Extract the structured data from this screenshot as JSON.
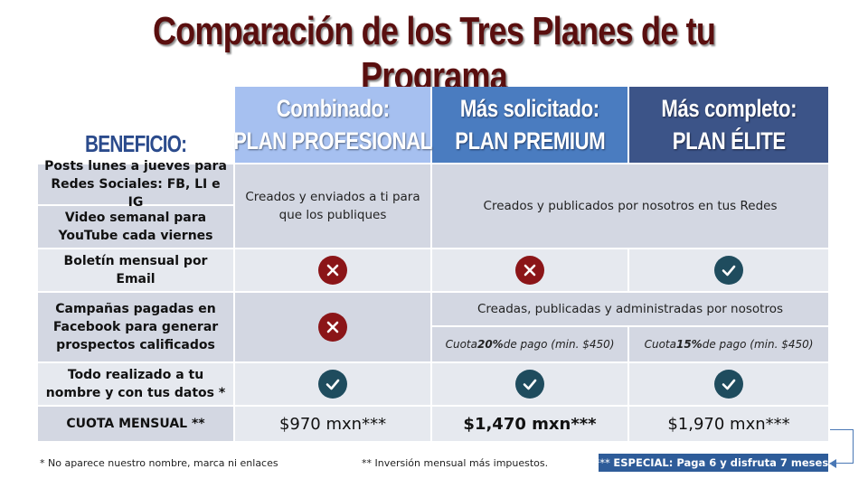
{
  "title": "Comparación de los Tres Planes de tu Programa",
  "header": {
    "corner": "BENEFICIO:",
    "plans": [
      {
        "line1": "Combinado:",
        "line2": "PLAN PROFESIONAL"
      },
      {
        "line1": "Más solicitado:",
        "line2": "PLAN PREMIUM"
      },
      {
        "line1": "Más completo:",
        "line2": "PLAN ÉLITE"
      }
    ]
  },
  "rows": {
    "posts": "Posts lunes a jueves para Redes Sociales: FB, LI e IG",
    "video": "Video semanal para YouTube cada viernes",
    "social_profesional": "Creados y enviados a ti para que los publiques",
    "social_premium_elite": "Creados y publicados por nosotros en tus Redes",
    "boletin": "Boletín mensual por Email",
    "campanas": "Campañas pagadas en Facebook para generar prospectos calificados",
    "campanas_premium_elite": "Creadas, publicadas y administradas por nosotros",
    "quota_premium": {
      "pre": "Cuota ",
      "pct": "20%",
      "post": " de pago (min. $450)"
    },
    "quota_elite": {
      "pre": "Cuota ",
      "pct": "15%",
      "post": " de pago (min. $450)"
    },
    "todo": "Todo realizado a tu nombre y con tus datos *",
    "cuota_label": "CUOTA MENSUAL **",
    "prices": [
      "$970 mxn***",
      "$1,470 mxn***",
      "$1,970 mxn***"
    ]
  },
  "icons": {
    "boletin": [
      "x-icon",
      "x-icon",
      "check-icon"
    ],
    "campanas_profesional": "x-icon",
    "todo": [
      "check-icon",
      "check-icon",
      "check-icon"
    ]
  },
  "colors": {
    "title": "#5a0f0f",
    "header_profesional": "#a6c0f0",
    "header_premium": "#4a7cc0",
    "header_elite": "#3c5488",
    "x_icon": "#8b1518",
    "check_icon": "#1f4c5e"
  },
  "footer": {
    "note1": "* No aparece nuestro nombre, marca ni enlaces",
    "note2": "** Inversión mensual más impuestos.",
    "special_prefix": "*** ",
    "special_text": "ESPECIAL: Paga 6 y disfruta 7 meses."
  }
}
